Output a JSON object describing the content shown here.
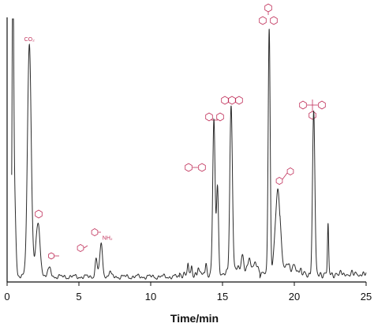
{
  "chart_data": {
    "type": "line",
    "title": "",
    "xlabel": "Time/min",
    "ylabel": "",
    "xlim": [
      0,
      25
    ],
    "ylim": [
      0,
      100
    ],
    "grid": false,
    "legend": "none",
    "x_ticks": [
      "0",
      "5",
      "10",
      "15",
      "20",
      "25"
    ],
    "colors": {
      "trace": "#2b2b2b",
      "axis": "#111111",
      "structure": "#c0305a"
    },
    "peaks": [
      {
        "t": 0.4,
        "h": 98,
        "w": 0.05
      },
      {
        "t": 0.48,
        "h": 40,
        "w": 0.1
      },
      {
        "t": 1.55,
        "h": 89,
        "w": 0.13
      },
      {
        "t": 2.15,
        "h": 20,
        "w": 0.15
      },
      {
        "t": 2.95,
        "h": 3,
        "w": 0.12
      },
      {
        "t": 6.2,
        "h": 6.5,
        "w": 0.08
      },
      {
        "t": 6.55,
        "h": 12,
        "w": 0.1
      },
      {
        "t": 7.15,
        "h": 1.8,
        "w": 0.08
      },
      {
        "t": 12.6,
        "h": 3.5,
        "w": 0.04
      },
      {
        "t": 12.85,
        "h": 3.0,
        "w": 0.04
      },
      {
        "t": 13.3,
        "h": 2.5,
        "w": 0.05
      },
      {
        "t": 13.85,
        "h": 4.5,
        "w": 0.05
      },
      {
        "t": 14.4,
        "h": 59,
        "w": 0.08
      },
      {
        "t": 14.65,
        "h": 34,
        "w": 0.07
      },
      {
        "t": 15.6,
        "h": 62,
        "w": 0.09
      },
      {
        "t": 16.4,
        "h": 5,
        "w": 0.08
      },
      {
        "t": 16.85,
        "h": 4,
        "w": 0.08
      },
      {
        "t": 17.3,
        "h": 3,
        "w": 0.08
      },
      {
        "t": 18.25,
        "h": 93,
        "w": 0.07
      },
      {
        "t": 18.85,
        "h": 31,
        "w": 0.18
      },
      {
        "t": 19.5,
        "h": 3,
        "w": 0.1
      },
      {
        "t": 20.0,
        "h": 2.5,
        "w": 0.1
      },
      {
        "t": 21.35,
        "h": 62,
        "w": 0.08
      },
      {
        "t": 22.35,
        "h": 19,
        "w": 0.04
      }
    ],
    "peak_labels": [
      {
        "t": 1.55,
        "text": "CO₂"
      },
      {
        "t": 6.55,
        "text": "NH₂"
      }
    ]
  }
}
